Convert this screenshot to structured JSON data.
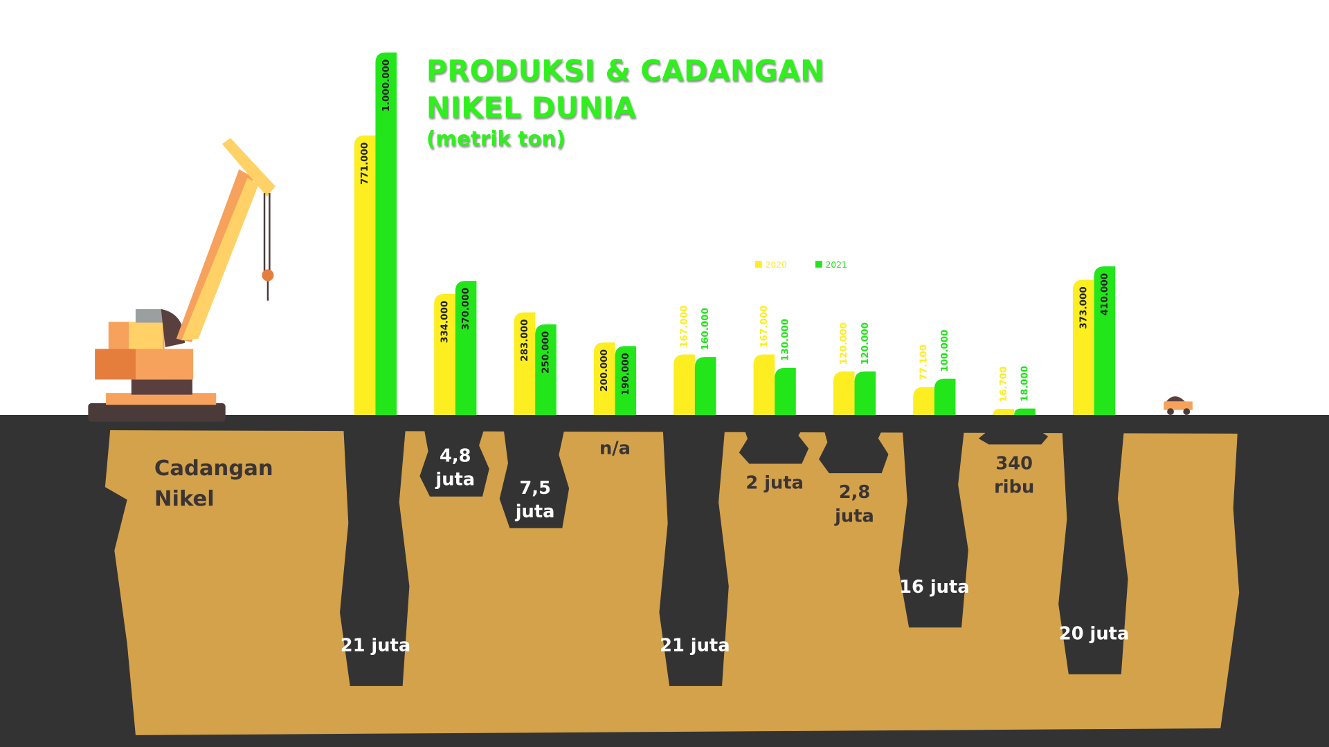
{
  "chart_data": {
    "type": "bar",
    "title": "PRODUKSI & CADANGAN NIKEL DUNIA",
    "subtitle": "(metrik ton)",
    "categories": [
      null,
      null,
      null,
      null,
      null,
      null,
      null,
      null,
      null,
      null
    ],
    "ylim": [
      0,
      1000000
    ],
    "series": [
      {
        "name": "2020",
        "color": "#fcee21",
        "values": [
          771000,
          334000,
          283000,
          200000,
          167000,
          167000,
          120000,
          77100,
          16700,
          373000
        ],
        "value_labels": [
          "771.000",
          "334.000",
          "283.000",
          "200.000",
          "167.000",
          "167.000",
          "120.000",
          "77.100",
          "16.700",
          "373.000"
        ]
      },
      {
        "name": "2021",
        "color": "#22e61a",
        "values": [
          1000000,
          370000,
          250000,
          190000,
          160000,
          130000,
          120000,
          100000,
          18000,
          410000
        ],
        "value_labels": [
          "1.000.000",
          "370.000",
          "250.000",
          "190.000",
          "160.000",
          "130.000",
          "120.000",
          "100.000",
          "18.000",
          "410.000"
        ]
      }
    ],
    "reserves": {
      "name": "Cadangan Nikel",
      "values": [
        21000000,
        4800000,
        7500000,
        null,
        21000000,
        2000000,
        2800000,
        16000000,
        340000,
        20000000
      ],
      "value_labels": [
        "21 juta",
        "4,8 juta",
        "7,5 juta",
        "n/a",
        "21 juta",
        "2 juta",
        "2,8 juta",
        "16 juta",
        "340 ribu",
        "20 juta"
      ]
    }
  }
}
